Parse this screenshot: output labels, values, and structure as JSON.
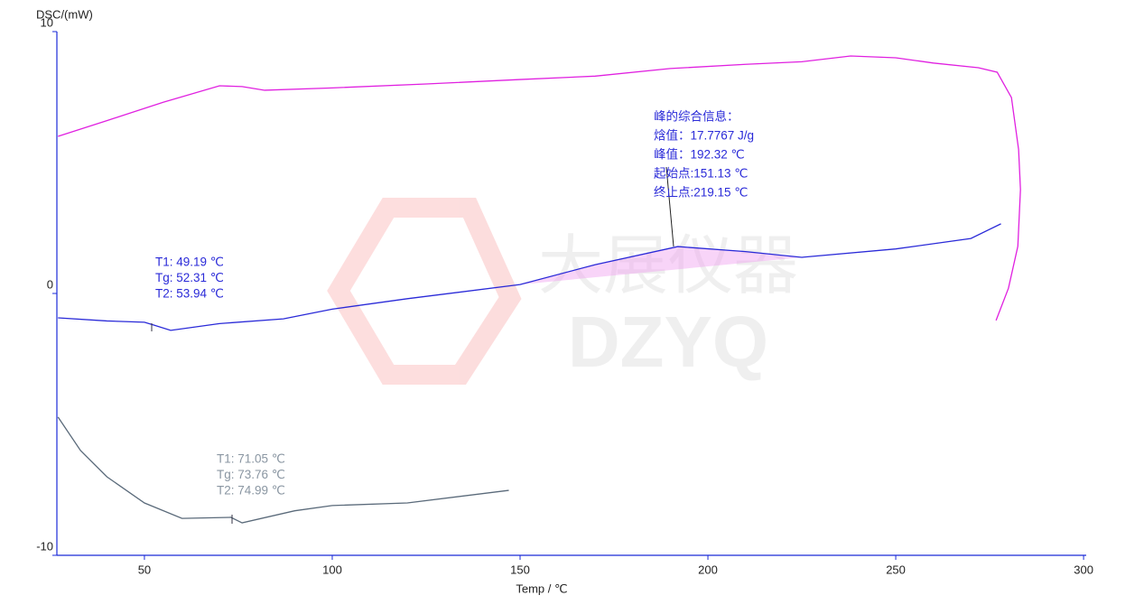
{
  "chart_data": {
    "type": "line",
    "ylabel": "DSC/(mW)",
    "xlabel": "Temp / ℃",
    "xlim": [
      26.7,
      300.7
    ],
    "xticks": [
      50,
      100,
      150,
      200,
      250,
      300
    ],
    "ylim": [
      -10,
      10
    ],
    "yticks": [
      -10,
      0,
      10
    ],
    "watermark": {
      "text": "大展仪器",
      "subtext": "DZYQ"
    },
    "series": [
      {
        "color": "#e020e0",
        "x": [
          27,
          40,
          55,
          70,
          76,
          82,
          100,
          125,
          150,
          170,
          190,
          210,
          225,
          238,
          250,
          260,
          272,
          277,
          280.8,
          282.7,
          283.2,
          282.5,
          280,
          276.7
        ],
        "values": [
          6.0,
          6.6,
          7.3,
          7.93,
          7.9,
          7.76,
          7.85,
          8.0,
          8.17,
          8.3,
          8.59,
          8.75,
          8.85,
          9.07,
          9.0,
          8.8,
          8.62,
          8.45,
          7.48,
          5.5,
          3.97,
          1.8,
          0.2,
          -1.03
        ]
      },
      {
        "color": "#2a2ad8",
        "x": [
          27,
          40,
          50,
          52.3,
          57,
          70,
          87,
          100,
          120,
          150,
          170,
          192,
          210,
          225,
          250,
          270,
          278
        ],
        "values": [
          -0.93,
          -1.05,
          -1.1,
          -1.2,
          -1.41,
          -1.15,
          -0.97,
          -0.6,
          -0.2,
          0.34,
          1.1,
          1.79,
          1.6,
          1.38,
          1.7,
          2.1,
          2.66
        ]
      },
      {
        "color": "#5a6a7a",
        "x": [
          27,
          33,
          40,
          50,
          60,
          73,
          76,
          90,
          100,
          120,
          147
        ],
        "values": [
          -4.72,
          -6.0,
          -7.0,
          -8.0,
          -8.59,
          -8.55,
          -8.76,
          -8.3,
          -8.1,
          -8.0,
          -7.52
        ]
      }
    ],
    "annotations": [
      {
        "color": "#2a2ad8",
        "lines": [
          "T1:  49.19 ℃",
          "Tg:  52.31 ℃",
          "T2:  53.94 ℃"
        ]
      },
      {
        "color": "#8a96a2",
        "lines": [
          "T1:  71.05 ℃",
          "Tg:  73.76 ℃",
          "T2:  74.99 ℃"
        ]
      },
      {
        "color": "#2a2ad8",
        "lines": [
          "峰的综合信息：",
          "焓值：17.7767 J/g",
          "峰值：192.32 ℃",
          "起始点:151.13 ℃",
          "终止点:219.15 ℃"
        ]
      }
    ]
  }
}
